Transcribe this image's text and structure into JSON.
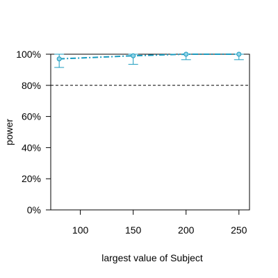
{
  "chart_data": {
    "type": "line",
    "title": "",
    "xlabel": "largest value of Subject",
    "ylabel": "power",
    "xlim": [
      72,
      260
    ],
    "ylim": [
      0,
      1
    ],
    "x_ticks": [
      100,
      150,
      200,
      250
    ],
    "x_tick_labels": [
      "100",
      "150",
      "200",
      "250"
    ],
    "y_ticks": [
      0,
      0.2,
      0.4,
      0.6,
      0.8,
      1.0
    ],
    "y_tick_labels": [
      "0%",
      "20%",
      "40%",
      "60%",
      "80%",
      "100%"
    ],
    "reference_line": {
      "y": 0.8,
      "style": "dashed"
    },
    "grid": false,
    "series": [
      {
        "x": [
          80,
          150,
          200,
          250
        ],
        "y": [
          0.97,
          0.99,
          1.0,
          1.0
        ],
        "lower": [
          0.915,
          0.935,
          0.965,
          0.965
        ],
        "upper": [
          1.0,
          1.0,
          1.0,
          1.0
        ],
        "color": "#1a9bbf",
        "marker_fill": "#8fd3e8"
      }
    ]
  }
}
